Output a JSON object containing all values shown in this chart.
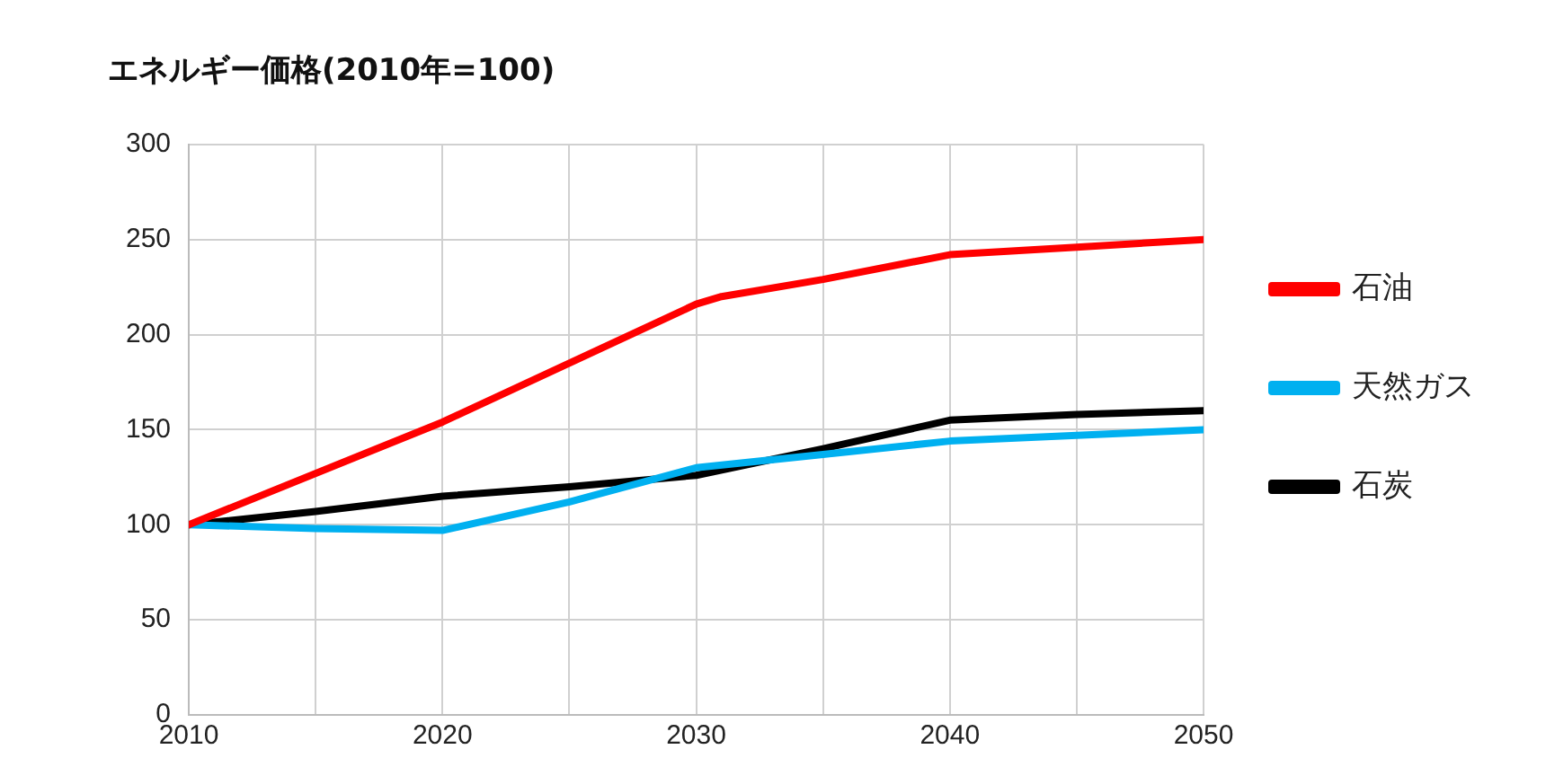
{
  "chart_data": {
    "type": "line",
    "title": "エネルギー価格(2010年=100)",
    "series": [
      {
        "name": "石油",
        "color": "#ff0000",
        "x": [
          2010,
          2020,
          2030,
          2031,
          2035,
          2040,
          2045,
          2050
        ],
        "values": [
          100,
          154,
          216,
          220,
          229,
          242,
          246,
          250
        ]
      },
      {
        "name": "天然ガス",
        "color": "#00b0f0",
        "x": [
          2010,
          2015,
          2020,
          2025,
          2030,
          2035,
          2040,
          2045,
          2050
        ],
        "values": [
          100,
          98,
          97,
          112,
          130,
          137,
          144,
          147,
          150
        ]
      },
      {
        "name": "石炭",
        "color": "#000000",
        "x": [
          2010,
          2015,
          2020,
          2025,
          2030,
          2035,
          2040,
          2045,
          2050
        ],
        "values": [
          100,
          107,
          115,
          120,
          126,
          140,
          155,
          158,
          160
        ]
      }
    ],
    "xlim": [
      2010,
      2050
    ],
    "xticks": [
      2010,
      {
        "value": 2015,
        "label": null
      },
      2020,
      {
        "value": 2025,
        "label": null
      },
      2030,
      {
        "value": 2035,
        "label": null
      },
      2040,
      {
        "value": 2045,
        "label": null
      },
      2050
    ],
    "ylim": [
      0,
      300
    ],
    "yticks": [
      0,
      50,
      100,
      150,
      200,
      250,
      300
    ],
    "grid": true,
    "legend": "right",
    "marker": "none",
    "line_style": "solid"
  }
}
